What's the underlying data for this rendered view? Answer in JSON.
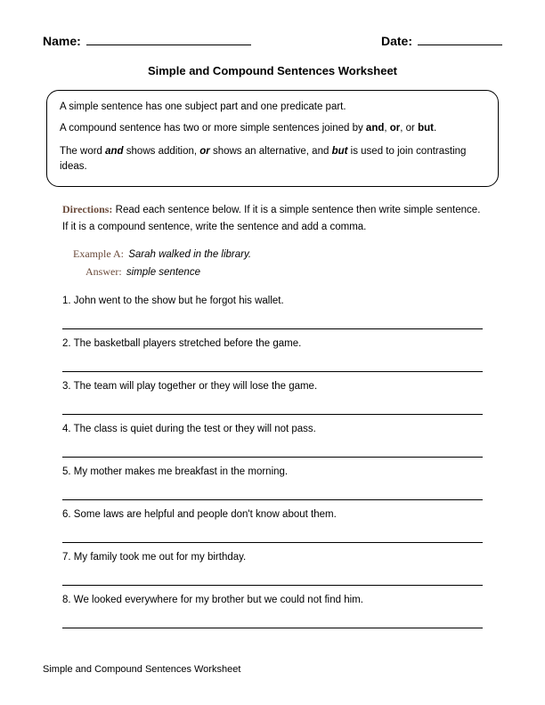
{
  "header": {
    "name_label": "Name:",
    "date_label": "Date:"
  },
  "title": "Simple and Compound Sentences Worksheet",
  "info": {
    "line1_pre": "A simple sentence has one subject part and one predicate part.",
    "line2_pre": "A compound sentence has two or more simple sentences joined by ",
    "and": "and",
    "or": "or",
    "but": "but",
    "line2_post": ".",
    "line3_a": "The word ",
    "line3_b": " shows addition, ",
    "line3_c": " shows an alternative, and ",
    "line3_d": " is used to join contrasting ideas."
  },
  "directions": {
    "label": "Directions:",
    "text": " Read each sentence below. If it is a simple sentence then write simple sentence. If it is a compound sentence, write the sentence and add a comma."
  },
  "example": {
    "label_a": "Example A:",
    "text_a": "Sarah walked in the library.",
    "label_ans": "Answer:",
    "text_ans": "simple sentence"
  },
  "questions": [
    "John went to the show but he forgot his wallet.",
    "The basketball players stretched before the game.",
    "The team will play together or they will lose the game.",
    "The class is quiet during the test or they will not pass.",
    "My mother makes me breakfast in the morning.",
    "Some laws are helpful and people don't know about them.",
    "My family took me out for my birthday.",
    "We looked everywhere for my brother but we could not find him."
  ],
  "footer": "Simple and Compound Sentences Worksheet"
}
